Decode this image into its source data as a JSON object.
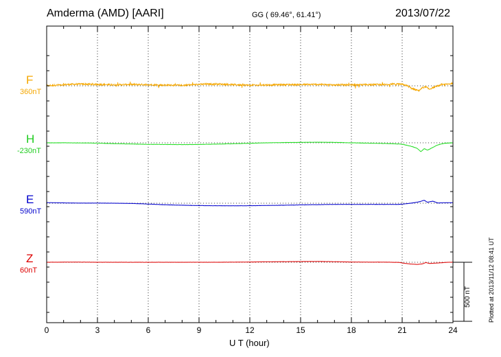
{
  "header": {
    "station": "Amderma (AMD)  [AARI]",
    "coords": "GG ( 69.46°,  61.41°)",
    "date": "2013/07/22"
  },
  "footer": {
    "plotted": "Plotted at 2013/11/12 08:41 UT"
  },
  "chart_data": {
    "type": "line",
    "xlabel": "U T (hour)",
    "xlim": [
      0,
      24
    ],
    "xticks": [
      "0",
      "3",
      "6",
      "9",
      "12",
      "15",
      "18",
      "21",
      "24"
    ],
    "xtick_values": [
      0,
      3,
      6,
      9,
      12,
      15,
      18,
      21,
      24
    ],
    "grid": true,
    "scale_bar": {
      "label": "500 nT",
      "value_nT": 500
    },
    "series": [
      {
        "name": "F",
        "baseline_label": "360nT",
        "baseline_nT": 360,
        "color": "#f5a700",
        "noise": 7,
        "x": [
          0,
          1,
          2,
          3,
          4,
          5,
          6,
          7,
          8,
          9,
          10,
          11,
          12,
          13,
          14,
          15,
          16,
          17,
          18,
          19,
          19.5,
          20,
          20.5,
          21,
          21.3,
          21.6,
          21.8,
          22,
          22.2,
          22.4,
          22.6,
          23,
          23.5,
          24
        ],
        "y": [
          360,
          370,
          375,
          372,
          368,
          372,
          370,
          366,
          364,
          372,
          376,
          370,
          365,
          367,
          370,
          370,
          372,
          368,
          368,
          370,
          372,
          370,
          375,
          372,
          360,
          335,
          325,
          320,
          345,
          350,
          332,
          355,
          372,
          380
        ]
      },
      {
        "name": "H",
        "baseline_label": "-230nT",
        "baseline_nT": -230,
        "color": "#22dd22",
        "noise": 1.2,
        "x": [
          0,
          1,
          2,
          3,
          4,
          5,
          6,
          7,
          8,
          9,
          10,
          11,
          12,
          13,
          14,
          15,
          16,
          17,
          18,
          19,
          20,
          20.5,
          21,
          21.3,
          21.6,
          21.9,
          22.1,
          22.3,
          22.5,
          22.8,
          23.1,
          23.5,
          24
        ],
        "y": [
          -230,
          -230,
          -231,
          -233,
          -237,
          -240,
          -243,
          -244,
          -245,
          -244,
          -241,
          -238,
          -234,
          -230,
          -228,
          -226,
          -225,
          -226,
          -230,
          -233,
          -236,
          -238,
          -242,
          -252,
          -262,
          -278,
          -305,
          -280,
          -292,
          -270,
          -248,
          -234,
          -230
        ]
      },
      {
        "name": "E",
        "baseline_label": "590nT",
        "baseline_nT": 590,
        "color": "#0000cc",
        "noise": 1.0,
        "x": [
          0,
          1,
          2,
          3,
          4,
          5,
          6,
          7,
          8,
          9,
          10,
          11,
          12,
          13,
          14,
          15,
          16,
          17,
          18,
          19,
          20,
          20.8,
          21.2,
          21.6,
          22,
          22.3,
          22.5,
          22.8,
          23.1,
          23.5,
          24
        ],
        "y": [
          595,
          593,
          591,
          591,
          590,
          588,
          583,
          577,
          573,
          570,
          569,
          568,
          569,
          571,
          573,
          576,
          578,
          580,
          580,
          580,
          580,
          580,
          585,
          592,
          602,
          615,
          598,
          608,
          592,
          594,
          594
        ]
      },
      {
        "name": "Z",
        "baseline_label": "60nT",
        "baseline_nT": 60,
        "color": "#dd0000",
        "noise": 0.8,
        "x": [
          0,
          1,
          2,
          3,
          4,
          5,
          6,
          7,
          8,
          9,
          10,
          11,
          12,
          13,
          14,
          15,
          16,
          17,
          18,
          19,
          20,
          20.8,
          21.1,
          21.5,
          21.9,
          22.2,
          22.4,
          22.6,
          22.9,
          23.3,
          23.7,
          24
        ],
        "y": [
          60,
          61,
          61,
          60,
          60,
          60,
          60,
          60,
          60,
          60,
          60,
          61,
          62,
          64,
          65,
          66,
          67,
          65,
          62,
          61,
          61,
          59,
          52,
          45,
          42,
          46,
          58,
          50,
          52,
          56,
          60,
          60
        ]
      }
    ]
  }
}
